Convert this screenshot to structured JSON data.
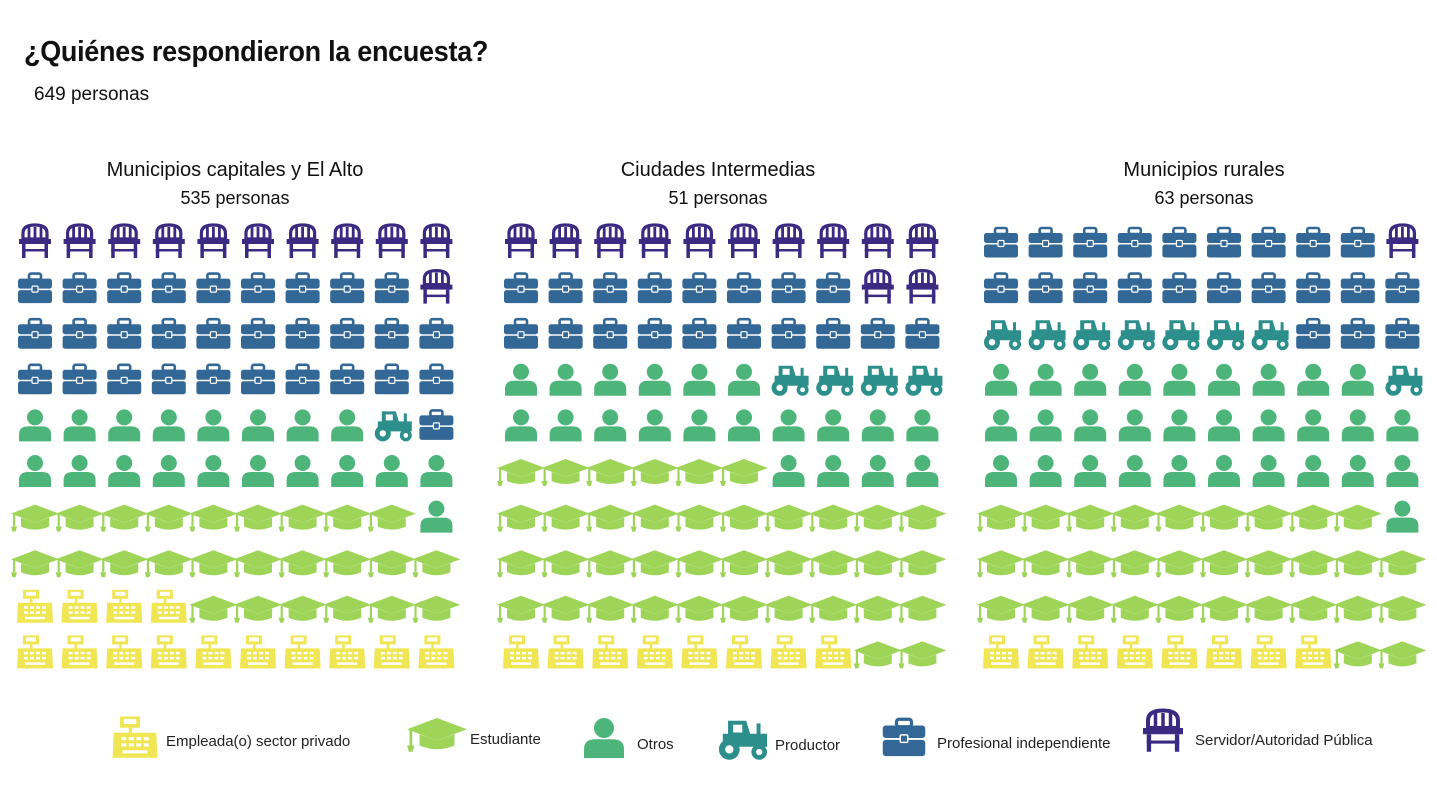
{
  "header": {
    "title": "¿Quiénes respondieron la encuesta?",
    "subtitle": "649 personas"
  },
  "colors": {
    "Empleada(o) sector privado": "#F0E552",
    "Estudiante": "#9ED559",
    "Otros": "#4DB57A",
    "Productor": "#2D8F8C",
    "Profesional independiente": "#336796",
    "Servidor/Autoridad Pública": "#3B2A82"
  },
  "icons": {
    "Empleada(o) sector privado": "cash-register-icon",
    "Estudiante": "graduation-cap-icon",
    "Otros": "person-icon",
    "Productor": "tractor-icon",
    "Profesional independiente": "briefcase-icon",
    "Servidor/Autoridad Pública": "chair-icon"
  },
  "chart_data": [
    {
      "type": "pictogram",
      "title": "Municipios capitales y El Alto",
      "subtitle": "535 personas",
      "rows": [
        [
          "Servidor/Autoridad Pública",
          "Servidor/Autoridad Pública",
          "Servidor/Autoridad Pública",
          "Servidor/Autoridad Pública",
          "Servidor/Autoridad Pública",
          "Servidor/Autoridad Pública",
          "Servidor/Autoridad Pública",
          "Servidor/Autoridad Pública",
          "Servidor/Autoridad Pública",
          "Servidor/Autoridad Pública"
        ],
        [
          "Profesional independiente",
          "Profesional independiente",
          "Profesional independiente",
          "Profesional independiente",
          "Profesional independiente",
          "Profesional independiente",
          "Profesional independiente",
          "Profesional independiente",
          "Profesional independiente",
          "Servidor/Autoridad Pública"
        ],
        [
          "Profesional independiente",
          "Profesional independiente",
          "Profesional independiente",
          "Profesional independiente",
          "Profesional independiente",
          "Profesional independiente",
          "Profesional independiente",
          "Profesional independiente",
          "Profesional independiente",
          "Profesional independiente"
        ],
        [
          "Profesional independiente",
          "Profesional independiente",
          "Profesional independiente",
          "Profesional independiente",
          "Profesional independiente",
          "Profesional independiente",
          "Profesional independiente",
          "Profesional independiente",
          "Profesional independiente",
          "Profesional independiente"
        ],
        [
          "Otros",
          "Otros",
          "Otros",
          "Otros",
          "Otros",
          "Otros",
          "Otros",
          "Otros",
          "Productor",
          "Profesional independiente"
        ],
        [
          "Otros",
          "Otros",
          "Otros",
          "Otros",
          "Otros",
          "Otros",
          "Otros",
          "Otros",
          "Otros",
          "Otros"
        ],
        [
          "Estudiante",
          "Estudiante",
          "Estudiante",
          "Estudiante",
          "Estudiante",
          "Estudiante",
          "Estudiante",
          "Estudiante",
          "Estudiante",
          "Otros"
        ],
        [
          "Estudiante",
          "Estudiante",
          "Estudiante",
          "Estudiante",
          "Estudiante",
          "Estudiante",
          "Estudiante",
          "Estudiante",
          "Estudiante",
          "Estudiante"
        ],
        [
          "Empleada(o) sector privado",
          "Empleada(o) sector privado",
          "Empleada(o) sector privado",
          "Empleada(o) sector privado",
          "Estudiante",
          "Estudiante",
          "Estudiante",
          "Estudiante",
          "Estudiante",
          "Estudiante"
        ],
        [
          "Empleada(o) sector privado",
          "Empleada(o) sector privado",
          "Empleada(o) sector privado",
          "Empleada(o) sector privado",
          "Empleada(o) sector privado",
          "Empleada(o) sector privado",
          "Empleada(o) sector privado",
          "Empleada(o) sector privado",
          "Empleada(o) sector privado",
          "Empleada(o) sector privado"
        ]
      ]
    },
    {
      "type": "pictogram",
      "title": "Ciudades Intermedias",
      "subtitle": "51 personas",
      "rows": [
        [
          "Servidor/Autoridad Pública",
          "Servidor/Autoridad Pública",
          "Servidor/Autoridad Pública",
          "Servidor/Autoridad Pública",
          "Servidor/Autoridad Pública",
          "Servidor/Autoridad Pública",
          "Servidor/Autoridad Pública",
          "Servidor/Autoridad Pública",
          "Servidor/Autoridad Pública",
          "Servidor/Autoridad Pública"
        ],
        [
          "Profesional independiente",
          "Profesional independiente",
          "Profesional independiente",
          "Profesional independiente",
          "Profesional independiente",
          "Profesional independiente",
          "Profesional independiente",
          "Profesional independiente",
          "Servidor/Autoridad Pública",
          "Servidor/Autoridad Pública"
        ],
        [
          "Profesional independiente",
          "Profesional independiente",
          "Profesional independiente",
          "Profesional independiente",
          "Profesional independiente",
          "Profesional independiente",
          "Profesional independiente",
          "Profesional independiente",
          "Profesional independiente",
          "Profesional independiente"
        ],
        [
          "Otros",
          "Otros",
          "Otros",
          "Otros",
          "Otros",
          "Otros",
          "Productor",
          "Productor",
          "Productor",
          "Productor"
        ],
        [
          "Otros",
          "Otros",
          "Otros",
          "Otros",
          "Otros",
          "Otros",
          "Otros",
          "Otros",
          "Otros",
          "Otros"
        ],
        [
          "Estudiante",
          "Estudiante",
          "Estudiante",
          "Estudiante",
          "Estudiante",
          "Estudiante",
          "Otros",
          "Otros",
          "Otros",
          "Otros"
        ],
        [
          "Estudiante",
          "Estudiante",
          "Estudiante",
          "Estudiante",
          "Estudiante",
          "Estudiante",
          "Estudiante",
          "Estudiante",
          "Estudiante",
          "Estudiante"
        ],
        [
          "Estudiante",
          "Estudiante",
          "Estudiante",
          "Estudiante",
          "Estudiante",
          "Estudiante",
          "Estudiante",
          "Estudiante",
          "Estudiante",
          "Estudiante"
        ],
        [
          "Estudiante",
          "Estudiante",
          "Estudiante",
          "Estudiante",
          "Estudiante",
          "Estudiante",
          "Estudiante",
          "Estudiante",
          "Estudiante",
          "Estudiante"
        ],
        [
          "Empleada(o) sector privado",
          "Empleada(o) sector privado",
          "Empleada(o) sector privado",
          "Empleada(o) sector privado",
          "Empleada(o) sector privado",
          "Empleada(o) sector privado",
          "Empleada(o) sector privado",
          "Empleada(o) sector privado",
          "Estudiante",
          "Estudiante"
        ]
      ]
    },
    {
      "type": "pictogram",
      "title": "Municipios rurales",
      "subtitle": "63 personas",
      "rows": [
        [
          "Profesional independiente",
          "Profesional independiente",
          "Profesional independiente",
          "Profesional independiente",
          "Profesional independiente",
          "Profesional independiente",
          "Profesional independiente",
          "Profesional independiente",
          "Profesional independiente",
          "Servidor/Autoridad Pública"
        ],
        [
          "Profesional independiente",
          "Profesional independiente",
          "Profesional independiente",
          "Profesional independiente",
          "Profesional independiente",
          "Profesional independiente",
          "Profesional independiente",
          "Profesional independiente",
          "Profesional independiente",
          "Profesional independiente"
        ],
        [
          "Productor",
          "Productor",
          "Productor",
          "Productor",
          "Productor",
          "Productor",
          "Productor",
          "Profesional independiente",
          "Profesional independiente",
          "Profesional independiente"
        ],
        [
          "Otros",
          "Otros",
          "Otros",
          "Otros",
          "Otros",
          "Otros",
          "Otros",
          "Otros",
          "Otros",
          "Productor"
        ],
        [
          "Otros",
          "Otros",
          "Otros",
          "Otros",
          "Otros",
          "Otros",
          "Otros",
          "Otros",
          "Otros",
          "Otros"
        ],
        [
          "Otros",
          "Otros",
          "Otros",
          "Otros",
          "Otros",
          "Otros",
          "Otros",
          "Otros",
          "Otros",
          "Otros"
        ],
        [
          "Estudiante",
          "Estudiante",
          "Estudiante",
          "Estudiante",
          "Estudiante",
          "Estudiante",
          "Estudiante",
          "Estudiante",
          "Estudiante",
          "Otros"
        ],
        [
          "Estudiante",
          "Estudiante",
          "Estudiante",
          "Estudiante",
          "Estudiante",
          "Estudiante",
          "Estudiante",
          "Estudiante",
          "Estudiante",
          "Estudiante"
        ],
        [
          "Estudiante",
          "Estudiante",
          "Estudiante",
          "Estudiante",
          "Estudiante",
          "Estudiante",
          "Estudiante",
          "Estudiante",
          "Estudiante",
          "Estudiante"
        ],
        [
          "Empleada(o) sector privado",
          "Empleada(o) sector privado",
          "Empleada(o) sector privado",
          "Empleada(o) sector privado",
          "Empleada(o) sector privado",
          "Empleada(o) sector privado",
          "Empleada(o) sector privado",
          "Empleada(o) sector privado",
          "Estudiante",
          "Estudiante"
        ]
      ]
    }
  ],
  "legend": [
    {
      "label": "Empleada(o) sector privado"
    },
    {
      "label": "Estudiante"
    },
    {
      "label": "Otros"
    },
    {
      "label": "Productor"
    },
    {
      "label": "Profesional independiente"
    },
    {
      "label": "Servidor/Autoridad Pública"
    }
  ]
}
